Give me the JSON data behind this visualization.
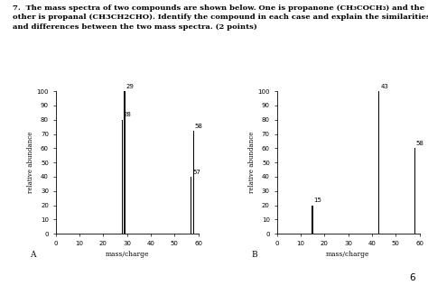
{
  "title_line1": "7.  The mass spectra of two compounds are shown below. One is propanone (CH₃COCH₃) and the",
  "title_line2": "other is propanal (CH3CH2CHO). Identify the compound in each case and explain the similarities",
  "title_line3": "and differences between the two mass spectra. (2 points)",
  "chart_A": {
    "label": "A",
    "xlabel": "mass/charge",
    "ylabel": "relative abundance",
    "xlim": [
      0,
      60
    ],
    "ylim": [
      0,
      100
    ],
    "xticks": [
      0,
      10,
      20,
      30,
      40,
      50,
      60
    ],
    "yticks": [
      0,
      10,
      20,
      30,
      40,
      50,
      60,
      70,
      80,
      90,
      100
    ],
    "peaks": [
      {
        "mz": 28,
        "abundance": 80,
        "label": "28"
      },
      {
        "mz": 29,
        "abundance": 100,
        "label": "29"
      },
      {
        "mz": 57,
        "abundance": 40,
        "label": "57"
      },
      {
        "mz": 58,
        "abundance": 72,
        "label": "58"
      }
    ]
  },
  "chart_B": {
    "label": "B",
    "xlabel": "mass/charge",
    "ylabel": "relative abundance",
    "xlim": [
      0,
      60
    ],
    "ylim": [
      0,
      100
    ],
    "xticks": [
      0,
      10,
      20,
      30,
      40,
      50,
      60
    ],
    "yticks": [
      0,
      10,
      20,
      30,
      40,
      50,
      60,
      70,
      80,
      90,
      100
    ],
    "peaks": [
      {
        "mz": 15,
        "abundance": 20,
        "label": "15"
      },
      {
        "mz": 43,
        "abundance": 100,
        "label": "43"
      },
      {
        "mz": 58,
        "abundance": 60,
        "label": "58"
      }
    ]
  },
  "bar_color": "#000000",
  "bar_width": 0.5,
  "background_color": "#ffffff",
  "font_color": "#000000",
  "page_number": "6"
}
